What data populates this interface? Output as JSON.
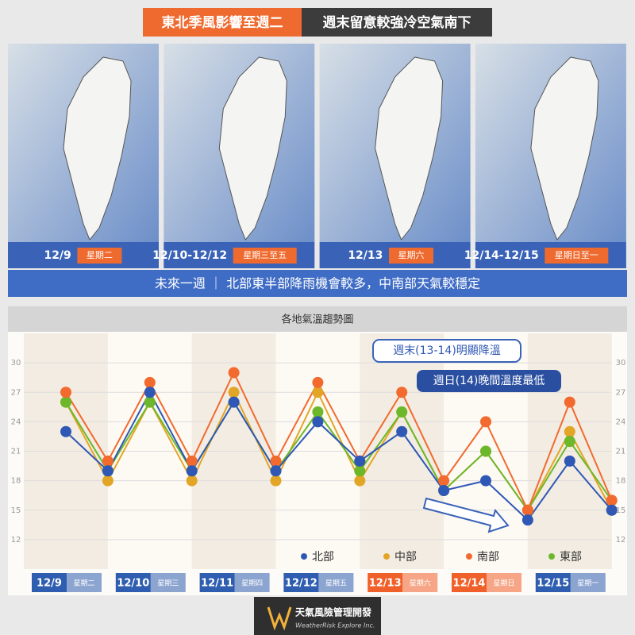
{
  "header": {
    "left": "東北季風影響至週二",
    "right": "週末留意較強冷空氣南下"
  },
  "maps": [
    {
      "date": "12/9",
      "day": "星期二"
    },
    {
      "date": "12/10-12/12",
      "day": "星期三至五"
    },
    {
      "date": "12/13",
      "day": "星期六"
    },
    {
      "date": "12/14-12/15",
      "day": "星期日至一"
    }
  ],
  "summary": "未來一週 ｜ 北部東半部降雨機會較多，中南部天氣較穩定",
  "chart_data": {
    "type": "line",
    "title": "各地氣溫趨勢圖",
    "annotations": [
      "週末(13-14)明顯降溫",
      "週日(14)晚間溫度最低"
    ],
    "categories": [
      "12/9",
      null,
      "12/10",
      null,
      "12/11",
      null,
      "12/12",
      null,
      "12/13",
      null,
      "12/14",
      null,
      "12/15",
      null
    ],
    "weekdays": [
      "星期二",
      null,
      "星期三",
      null,
      "星期四",
      null,
      "星期五",
      null,
      "星期六",
      null,
      "星期日",
      null,
      "星期一",
      null
    ],
    "date_colors": [
      "#2f5db0",
      null,
      "#2f5db0",
      null,
      "#2f5db0",
      null,
      "#2f5db0",
      null,
      "#f0602a",
      null,
      "#f0602a",
      null,
      "#2f5db0",
      null
    ],
    "series": [
      {
        "name": "中部",
        "color": "#e3a526",
        "values": [
          26,
          18,
          26,
          18,
          27,
          18,
          27,
          18,
          25,
          17,
          21,
          15,
          23,
          15
        ]
      },
      {
        "name": "東部",
        "color": "#6cb82a",
        "values": [
          26,
          19,
          26,
          19,
          26,
          19,
          25,
          19,
          25,
          17,
          21,
          15,
          22,
          16
        ]
      },
      {
        "name": "南部",
        "color": "#f26a2e",
        "values": [
          27,
          20,
          28,
          20,
          29,
          20,
          28,
          20,
          27,
          18,
          24,
          15,
          26,
          16
        ]
      },
      {
        "name": "北部",
        "color": "#2f57b5",
        "values": [
          23,
          19,
          27,
          19,
          26,
          19,
          24,
          20,
          23,
          17,
          18,
          14,
          20,
          15
        ]
      }
    ],
    "legend_order": [
      3,
      0,
      2,
      1
    ],
    "ylim": [
      9,
      33
    ],
    "yticks": [
      12,
      15,
      18,
      21,
      24,
      27,
      30
    ],
    "grid": true
  },
  "footer": {
    "name": "天氣風險管理開發",
    "name_en": "WeatherRisk Explore Inc."
  }
}
